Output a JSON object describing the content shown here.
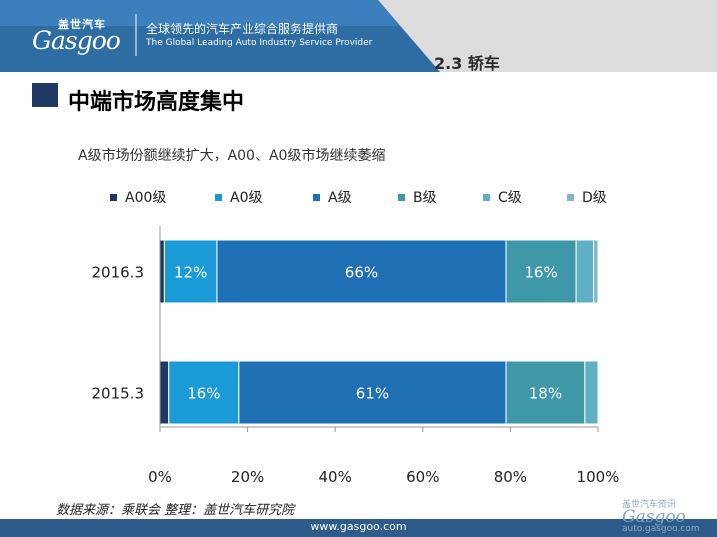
{
  "header": {
    "logo_cn": "盖世汽车",
    "logo_en": "Gasgoo",
    "tagline_cn": "全球领先的汽车产业综合服务提供商",
    "tagline_en": "The Global Leading Auto Industry Service Provider",
    "section": "2.3  轿车"
  },
  "page_title": "中端市场高度集中",
  "chart_data": {
    "type": "bar",
    "orientation": "horizontal",
    "stacked": true,
    "title": "A级市场份额继续扩大，A00、A0级市场继续萎缩",
    "categories": [
      "2016.3",
      "2015.3"
    ],
    "series": [
      {
        "name": "A00级",
        "color": "#1f3864",
        "values": [
          1,
          2
        ]
      },
      {
        "name": "A0级",
        "color": "#1a9bd7",
        "values": [
          12,
          16
        ]
      },
      {
        "name": "A级",
        "color": "#1f6fb5",
        "values": [
          66,
          61
        ]
      },
      {
        "name": "B级",
        "color": "#3f98a8",
        "values": [
          16,
          18
        ]
      },
      {
        "name": "C级",
        "color": "#5fb0c2",
        "values": [
          4,
          3
        ]
      },
      {
        "name": "D级",
        "color": "#7fb6c8",
        "values": [
          1,
          0
        ]
      }
    ],
    "data_labels": [
      [
        "",
        "12%",
        "66%",
        "16%",
        "",
        ""
      ],
      [
        "",
        "16%",
        "61%",
        "18%",
        "",
        ""
      ]
    ],
    "xlim": [
      0,
      100
    ],
    "xticks": [
      "0%",
      "20%",
      "40%",
      "60%",
      "80%",
      "100%"
    ],
    "grid": false,
    "legend": "top"
  },
  "footer": {
    "source": "数据来源：乘联会    整理：盖世汽车研究院",
    "url": "www.gasgoo.com",
    "watermark_small": "盖世汽车资讯",
    "watermark_big": "Gasgoo",
    "watermark_url": "auto.gasgoo.com"
  }
}
